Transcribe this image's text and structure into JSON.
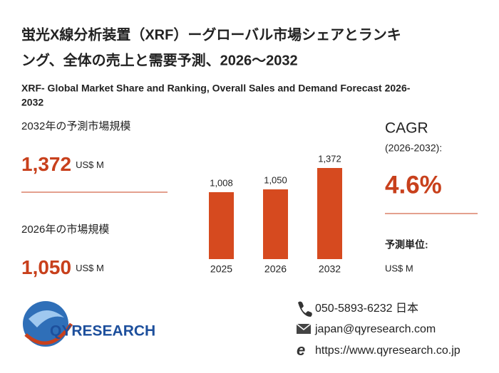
{
  "chart_data": {
    "type": "bar",
    "title": [
      "蛍光X線分析装置（XRF）ーグローバル市場シェアとランキ",
      "ング、全体の売上と需要予測、2026～2032"
    ],
    "subtitle": [
      "XRF- Global Market Share and Ranking, Overall Sales and Demand Forecast 2026-",
      "2032"
    ],
    "categories": [
      "2025",
      "2026",
      "2032"
    ],
    "values": [
      1008,
      1050,
      1372
    ],
    "value_labels": [
      "1,008",
      "1,050",
      "1,372"
    ],
    "color": "#d64a1f"
  },
  "summary": {
    "forecast_label": "2032年の予測市場規模",
    "forecast_value": "1,372",
    "forecast_unit": "US$ M",
    "current_label": "2026年の市場規模",
    "current_value": "1,050",
    "current_unit": "US$ M",
    "cagr_title": "CAGR",
    "cagr_period": "(2026-2032):",
    "cagr_value": "4.6%",
    "unit_label": "予測単位:",
    "unit_value": "US$ M"
  },
  "contact": {
    "phone": "050-5893-6232 日本",
    "email": "japan@qyresearch.com",
    "url": "https://www.qyresearch.co.jp"
  },
  "logo": "QYRESEARCH"
}
